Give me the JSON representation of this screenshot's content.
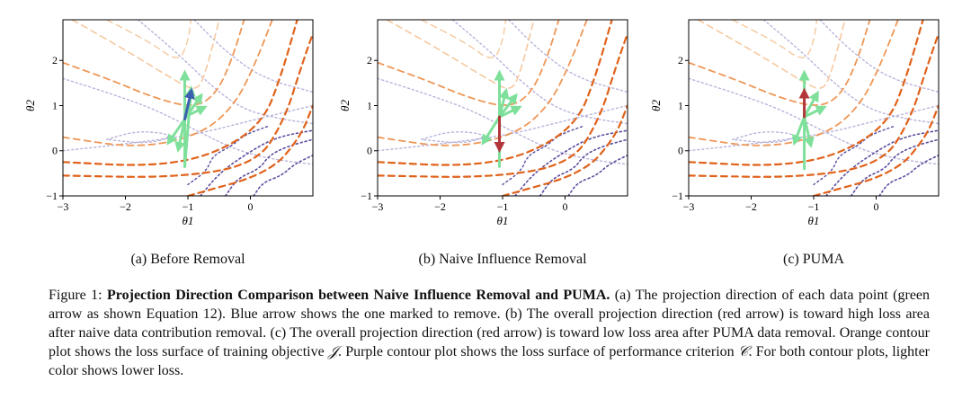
{
  "panels": [
    {
      "id": "a",
      "caption": "(a) Before Removal",
      "xlabel": "θ1",
      "ylabel": "θ2",
      "arrows": "before"
    },
    {
      "id": "b",
      "caption": "(b) Naive Influence Removal",
      "xlabel": "θ1",
      "ylabel": "θ2",
      "arrows": "naive"
    },
    {
      "id": "c",
      "caption": "(c) PUMA",
      "xlabel": "θ1",
      "ylabel": "θ2",
      "arrows": "puma"
    }
  ],
  "axes": {
    "xlim": [
      -3,
      1
    ],
    "ylim": [
      -1,
      2.9
    ],
    "xticks": [
      -3,
      -2,
      -1,
      0
    ],
    "yticks": [
      -1,
      0,
      1,
      2
    ]
  },
  "colors": {
    "green_arrow": "#7ee09a",
    "blue_arrow": "#3d5fb0",
    "red_arrow": "#b3363a",
    "orange_dark": "#e0621b",
    "orange_mid": "#ee9656",
    "orange_light": "#f5c9a0",
    "purple_dark": "#5a4d9e",
    "purple_light": "#b8b3da"
  },
  "caption": {
    "label": "Figure 1:",
    "title": "Projection Direction Comparison between Naive Influence Removal and PUMA.",
    "s1": "(a) The projection direction of each data point (green arrow as shown Equation 12). Blue arrow shows the one marked to remove. (b) The overall projection direction (red arrow) is toward high loss area after naive data contribution removal. (c) The overall projection direction (red arrow) is toward low loss area after PUMA data removal. Orange contour plot shows the loss surface of training objective ",
    "sym_j": "𝒥",
    "s2": ". Purple contour plot shows the loss surface of performance criterion ",
    "sym_c": "𝒞",
    "s3": ". For both contour plots, lighter color shows lower loss."
  }
}
